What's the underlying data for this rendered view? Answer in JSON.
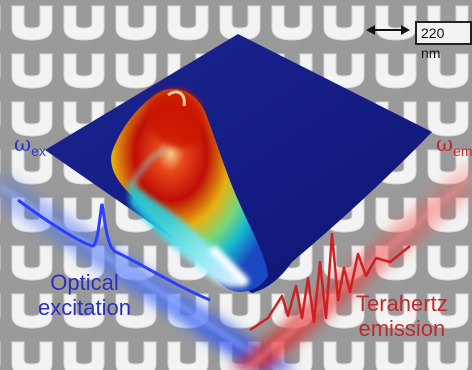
{
  "labels": {
    "omega_ex": {
      "symbol": "ω",
      "sub": "ex"
    },
    "omega_em": {
      "symbol": "ω",
      "sub": "em"
    },
    "optical": {
      "line1": "Optical",
      "line2": "excitation"
    },
    "terahertz": {
      "line1": "Terahertz",
      "line2": "emission"
    },
    "scale_bar": "220 nm"
  },
  "colors": {
    "background_gray": "#9a9a9a",
    "resonator_white": "#f3f3f3",
    "surface_blue": "#12197e",
    "optical_blue": "#2a36c8",
    "terahertz_red": "#c4262a"
  },
  "icons": [
    "double-arrow-icon"
  ]
}
